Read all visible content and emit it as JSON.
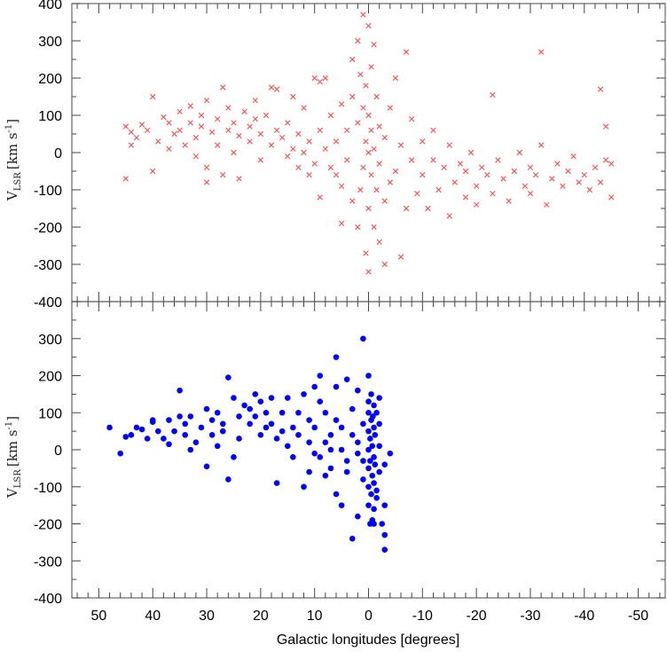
{
  "chart_data": [
    {
      "type": "scatter",
      "panel": "top",
      "marker": "x",
      "color": "#ff2020",
      "ylabel": {
        "main": "V",
        "sub": "LSR",
        "unit": "[km s",
        "exp": "-1",
        "close": "]"
      },
      "xlim": [
        55,
        -55
      ],
      "ylim": [
        -400,
        400
      ],
      "yticks": [
        400,
        300,
        200,
        100,
        0,
        -100,
        -200,
        -300,
        -400
      ],
      "points": [
        [
          45,
          70
        ],
        [
          45,
          -70
        ],
        [
          44,
          55
        ],
        [
          44,
          20
        ],
        [
          43,
          40
        ],
        [
          42,
          75
        ],
        [
          41,
          60
        ],
        [
          40,
          150
        ],
        [
          40,
          -50
        ],
        [
          39,
          30
        ],
        [
          38,
          95
        ],
        [
          37,
          80
        ],
        [
          37,
          10
        ],
        [
          36,
          50
        ],
        [
          35,
          110
        ],
        [
          35,
          60
        ],
        [
          34,
          20
        ],
        [
          33,
          125
        ],
        [
          33,
          80
        ],
        [
          32,
          40
        ],
        [
          32,
          -10
        ],
        [
          31,
          100
        ],
        [
          31,
          70
        ],
        [
          30,
          140
        ],
        [
          30,
          -40
        ],
        [
          30,
          -80
        ],
        [
          29,
          55
        ],
        [
          28,
          90
        ],
        [
          28,
          20
        ],
        [
          27,
          -60
        ],
        [
          27,
          175
        ],
        [
          26,
          60
        ],
        [
          26,
          120
        ],
        [
          25,
          0
        ],
        [
          25,
          80
        ],
        [
          24,
          45
        ],
        [
          24,
          -70
        ],
        [
          23,
          110
        ],
        [
          22,
          70
        ],
        [
          22,
          30
        ],
        [
          21,
          90
        ],
        [
          21,
          140
        ],
        [
          20,
          -20
        ],
        [
          20,
          50
        ],
        [
          19,
          100
        ],
        [
          18,
          175
        ],
        [
          18,
          20
        ],
        [
          17,
          60
        ],
        [
          17,
          170
        ],
        [
          16,
          40
        ],
        [
          15,
          -10
        ],
        [
          15,
          80
        ],
        [
          14,
          150
        ],
        [
          14,
          10
        ],
        [
          13,
          50
        ],
        [
          13,
          -40
        ],
        [
          12,
          0
        ],
        [
          12,
          120
        ],
        [
          11,
          -60
        ],
        [
          11,
          30
        ],
        [
          10,
          200
        ],
        [
          10,
          -30
        ],
        [
          9,
          190
        ],
        [
          9,
          60
        ],
        [
          9,
          -120
        ],
        [
          8,
          200
        ],
        [
          8,
          10
        ],
        [
          7,
          -40
        ],
        [
          7,
          100
        ],
        [
          6,
          -60
        ],
        [
          6,
          30
        ],
        [
          5,
          130
        ],
        [
          5,
          -90
        ],
        [
          5,
          -190
        ],
        [
          4,
          60
        ],
        [
          4,
          -20
        ],
        [
          3,
          150
        ],
        [
          3,
          -130
        ],
        [
          3,
          250
        ],
        [
          2,
          -200
        ],
        [
          2,
          80
        ],
        [
          2,
          300
        ],
        [
          1.5,
          -100
        ],
        [
          1.5,
          210
        ],
        [
          1,
          370
        ],
        [
          1,
          -40
        ],
        [
          1,
          120
        ],
        [
          0.5,
          -270
        ],
        [
          0.5,
          30
        ],
        [
          0.5,
          180
        ],
        [
          0,
          -320
        ],
        [
          0,
          -150
        ],
        [
          0,
          0
        ],
        [
          0,
          100
        ],
        [
          0,
          340
        ],
        [
          -0.5,
          60
        ],
        [
          -0.5,
          -60
        ],
        [
          -0.5,
          230
        ],
        [
          -1,
          -200
        ],
        [
          -1,
          10
        ],
        [
          -1,
          290
        ],
        [
          -1.5,
          -100
        ],
        [
          -1.5,
          150
        ],
        [
          -2,
          -30
        ],
        [
          -2,
          -240
        ],
        [
          -2,
          70
        ],
        [
          -3,
          -300
        ],
        [
          -3,
          40
        ],
        [
          -3,
          -130
        ],
        [
          -4,
          -80
        ],
        [
          -4,
          120
        ],
        [
          -5,
          -50
        ],
        [
          -5,
          200
        ],
        [
          -6,
          -280
        ],
        [
          -6,
          20
        ],
        [
          -7,
          -150
        ],
        [
          -7,
          270
        ],
        [
          -8,
          -20
        ],
        [
          -8,
          90
        ],
        [
          -9,
          -110
        ],
        [
          -10,
          -60
        ],
        [
          -10,
          30
        ],
        [
          -11,
          -150
        ],
        [
          -12,
          -20
        ],
        [
          -12,
          60
        ],
        [
          -13,
          -100
        ],
        [
          -14,
          -40
        ],
        [
          -15,
          -170
        ],
        [
          -15,
          20
        ],
        [
          -16,
          -80
        ],
        [
          -17,
          -30
        ],
        [
          -18,
          -120
        ],
        [
          -18,
          -50
        ],
        [
          -19,
          0
        ],
        [
          -20,
          -90
        ],
        [
          -20,
          -140
        ],
        [
          -21,
          -40
        ],
        [
          -22,
          -60
        ],
        [
          -23,
          -110
        ],
        [
          -23,
          155
        ],
        [
          -24,
          -20
        ],
        [
          -25,
          -70
        ],
        [
          -26,
          -130
        ],
        [
          -27,
          -50
        ],
        [
          -28,
          0
        ],
        [
          -29,
          -90
        ],
        [
          -30,
          -40
        ],
        [
          -30,
          -110
        ],
        [
          -31,
          -60
        ],
        [
          -32,
          270
        ],
        [
          -32,
          20
        ],
        [
          -33,
          -140
        ],
        [
          -34,
          -70
        ],
        [
          -35,
          -30
        ],
        [
          -36,
          -90
        ],
        [
          -37,
          -50
        ],
        [
          -38,
          -10
        ],
        [
          -39,
          -80
        ],
        [
          -40,
          -60
        ],
        [
          -41,
          -100
        ],
        [
          -42,
          -40
        ],
        [
          -43,
          170
        ],
        [
          -43,
          -80
        ],
        [
          -44,
          70
        ],
        [
          -44,
          -20
        ],
        [
          -45,
          -120
        ],
        [
          -45,
          -30
        ]
      ]
    },
    {
      "type": "scatter",
      "panel": "bottom",
      "marker": "dot",
      "color": "#0000ff",
      "xlabel": "Galactic longitudes [degrees]",
      "ylabel": {
        "main": "V",
        "sub": "LSR",
        "unit": "[km s",
        "exp": "-1",
        "close": "]"
      },
      "xlim": [
        55,
        -55
      ],
      "ylim": [
        -400,
        400
      ],
      "xticks": [
        50,
        40,
        30,
        20,
        10,
        0,
        -10,
        -20,
        -30,
        -40,
        -50
      ],
      "yticks": [
        300,
        200,
        100,
        0,
        -100,
        -200,
        -300,
        -400
      ],
      "points": [
        [
          48,
          60
        ],
        [
          46,
          -10
        ],
        [
          45,
          35
        ],
        [
          44,
          40
        ],
        [
          43,
          60
        ],
        [
          42,
          55
        ],
        [
          41,
          30
        ],
        [
          40,
          80
        ],
        [
          40,
          75
        ],
        [
          39,
          50
        ],
        [
          38,
          30
        ],
        [
          37,
          80
        ],
        [
          37,
          15
        ],
        [
          36,
          50
        ],
        [
          35,
          160
        ],
        [
          35,
          90
        ],
        [
          34,
          40
        ],
        [
          34,
          70
        ],
        [
          33,
          0
        ],
        [
          33,
          90
        ],
        [
          32,
          20
        ],
        [
          31,
          60
        ],
        [
          30,
          110
        ],
        [
          30,
          -45
        ],
        [
          29,
          80
        ],
        [
          29,
          40
        ],
        [
          28,
          100
        ],
        [
          28,
          10
        ],
        [
          27,
          70
        ],
        [
          27,
          50
        ],
        [
          26,
          195
        ],
        [
          26,
          -80
        ],
        [
          25,
          140
        ],
        [
          25,
          -20
        ],
        [
          24,
          90
        ],
        [
          24,
          30
        ],
        [
          23,
          120
        ],
        [
          22,
          70
        ],
        [
          22,
          110
        ],
        [
          21,
          150
        ],
        [
          21,
          90
        ],
        [
          20,
          40
        ],
        [
          20,
          130
        ],
        [
          19,
          100
        ],
        [
          19,
          60
        ],
        [
          18,
          70
        ],
        [
          18,
          140
        ],
        [
          17,
          -90
        ],
        [
          17,
          30
        ],
        [
          16,
          100
        ],
        [
          16,
          50
        ],
        [
          15,
          10
        ],
        [
          15,
          140
        ],
        [
          14,
          60
        ],
        [
          14,
          -20
        ],
        [
          13,
          40
        ],
        [
          13,
          100
        ],
        [
          12,
          -100
        ],
        [
          12,
          150
        ],
        [
          11,
          20
        ],
        [
          11,
          -60
        ],
        [
          11,
          80
        ],
        [
          10,
          170
        ],
        [
          10,
          60
        ],
        [
          10,
          -10
        ],
        [
          9,
          200
        ],
        [
          9,
          130
        ],
        [
          9,
          -20
        ],
        [
          8,
          20
        ],
        [
          8,
          -70
        ],
        [
          8,
          100
        ],
        [
          7,
          -50
        ],
        [
          7,
          40
        ],
        [
          7,
          0
        ],
        [
          6,
          -120
        ],
        [
          6,
          170
        ],
        [
          6,
          250
        ],
        [
          6,
          80
        ],
        [
          5,
          60
        ],
        [
          5,
          -150
        ],
        [
          5,
          0
        ],
        [
          4,
          190
        ],
        [
          4,
          -30
        ],
        [
          4,
          -60
        ],
        [
          3,
          110
        ],
        [
          3,
          -240
        ],
        [
          3,
          40
        ],
        [
          2,
          20
        ],
        [
          2,
          -180
        ],
        [
          2,
          160
        ],
        [
          2,
          -10
        ],
        [
          1,
          300
        ],
        [
          1,
          -80
        ],
        [
          1,
          70
        ],
        [
          1,
          -30
        ],
        [
          0,
          130
        ],
        [
          0,
          50
        ],
        [
          0,
          0
        ],
        [
          0,
          -50
        ],
        [
          0,
          -100
        ],
        [
          0,
          -150
        ],
        [
          0,
          200
        ],
        [
          0,
          100
        ],
        [
          -0.3,
          -200
        ],
        [
          -0.3,
          30
        ],
        [
          -0.3,
          -30
        ],
        [
          -0.5,
          80
        ],
        [
          -0.5,
          -120
        ],
        [
          -0.5,
          150
        ],
        [
          -0.7,
          10
        ],
        [
          -0.7,
          -70
        ],
        [
          -0.7,
          -190
        ],
        [
          -0.8,
          90
        ],
        [
          -1,
          120
        ],
        [
          -1,
          60
        ],
        [
          -1,
          -20
        ],
        [
          -1,
          -90
        ],
        [
          -1,
          -160
        ],
        [
          -1,
          -200
        ],
        [
          -1.2,
          40
        ],
        [
          -1.2,
          -40
        ],
        [
          -1.5,
          100
        ],
        [
          -1.5,
          -110
        ],
        [
          -1.5,
          -130
        ],
        [
          -2,
          10
        ],
        [
          -2,
          -60
        ],
        [
          -2,
          140
        ],
        [
          -2,
          70
        ],
        [
          -2.5,
          -200
        ],
        [
          -3,
          -150
        ],
        [
          -3,
          -270
        ],
        [
          -3,
          -230
        ],
        [
          -3,
          -40
        ],
        [
          -4,
          -10
        ]
      ]
    }
  ]
}
